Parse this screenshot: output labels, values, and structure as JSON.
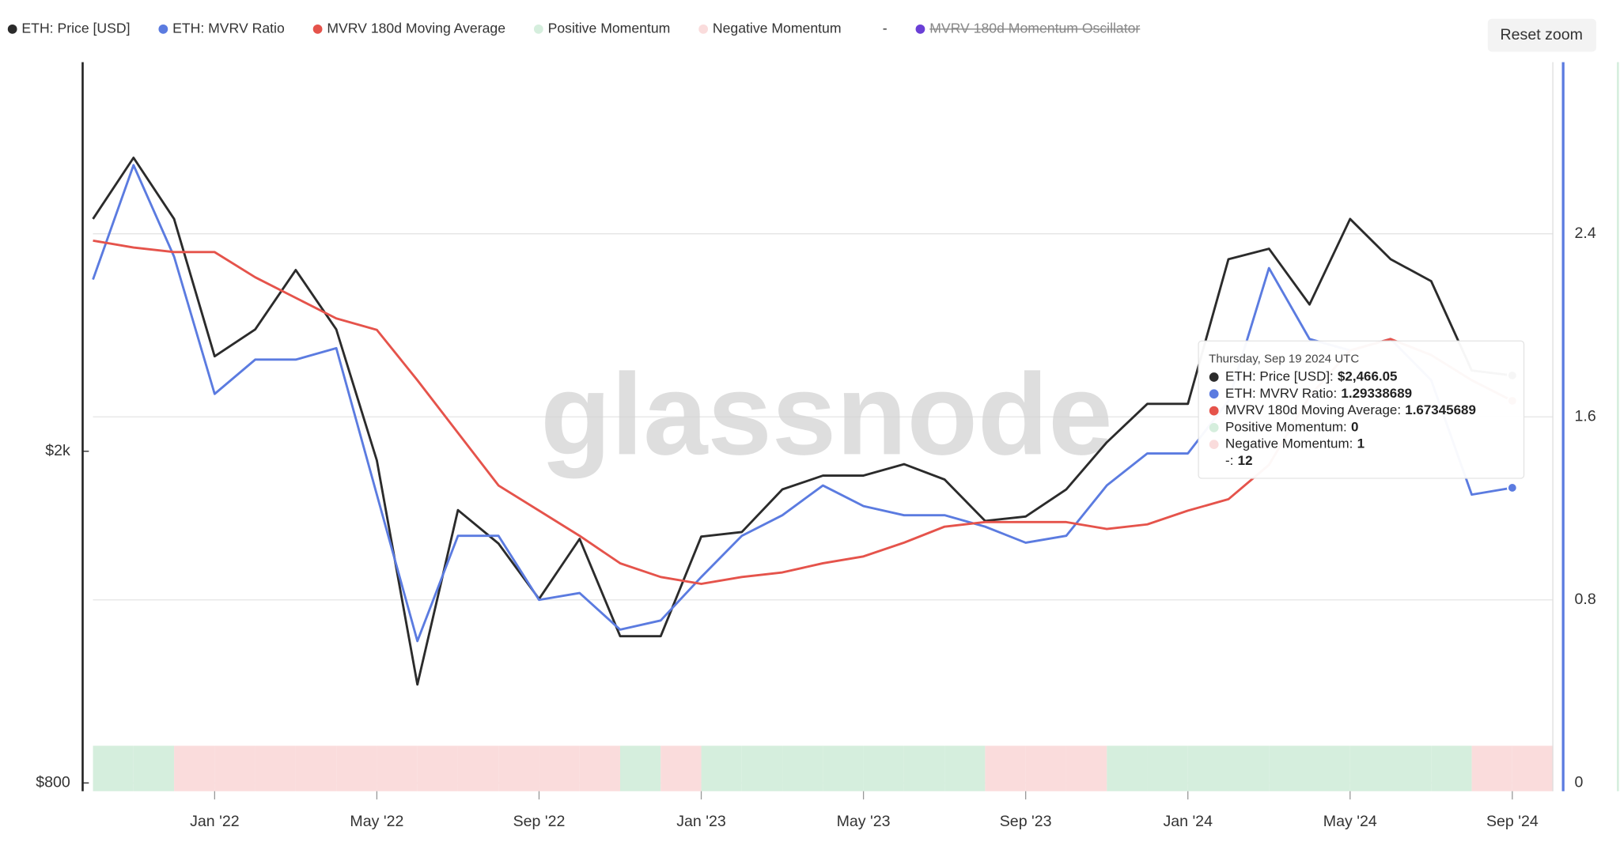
{
  "chart_data": {
    "type": "line",
    "x": [
      "2021-10",
      "2021-11",
      "2021-12",
      "2022-01",
      "2022-02",
      "2022-03",
      "2022-04",
      "2022-05",
      "2022-06",
      "2022-07",
      "2022-08",
      "2022-09",
      "2022-10",
      "2022-11",
      "2022-12",
      "2023-01",
      "2023-02",
      "2023-03",
      "2023-04",
      "2023-05",
      "2023-06",
      "2023-07",
      "2023-08",
      "2023-09",
      "2023-10",
      "2023-11",
      "2023-12",
      "2024-01",
      "2024-02",
      "2024-03",
      "2024-04",
      "2024-05",
      "2024-06",
      "2024-07",
      "2024-08",
      "2024-09"
    ],
    "xlim": [
      "2021-10",
      "2024-10"
    ],
    "xticks": [
      {
        "value": "2022-01",
        "label": "Jan '22"
      },
      {
        "value": "2022-05",
        "label": "May '22"
      },
      {
        "value": "2022-09",
        "label": "Sep '22"
      },
      {
        "value": "2023-01",
        "label": "Jan '23"
      },
      {
        "value": "2023-05",
        "label": "May '23"
      },
      {
        "value": "2023-09",
        "label": "Sep '23"
      },
      {
        "value": "2024-01",
        "label": "Jan '24"
      },
      {
        "value": "2024-05",
        "label": "May '24"
      },
      {
        "value": "2024-09",
        "label": "Sep '24"
      }
    ],
    "ylim": [
      800,
      5860
    ],
    "log_y": true,
    "yticks": [
      {
        "value": 800,
        "label": "$800"
      },
      {
        "value": 2000,
        "label": "$2k"
      }
    ],
    "y2lim": [
      0,
      3.15
    ],
    "y2ticks": [
      0,
      0.8,
      1.6,
      2.4
    ],
    "grid": true,
    "series": [
      {
        "name": "ETH: Price [USD]",
        "color": "#2b2b2b",
        "axis": "y",
        "style": "line",
        "values": [
          3800,
          4500,
          3800,
          2600,
          2800,
          3300,
          2800,
          1950,
          1050,
          1700,
          1550,
          1330,
          1570,
          1200,
          1200,
          1580,
          1600,
          1800,
          1870,
          1870,
          1930,
          1850,
          1650,
          1670,
          1800,
          2050,
          2280,
          2280,
          3400,
          3500,
          3000,
          3800,
          3400,
          3200,
          2500,
          2466.05
        ]
      },
      {
        "name": "ETH: MVRV Ratio",
        "color": "#5b7be0",
        "axis": "y2",
        "style": "line",
        "values": [
          2.2,
          2.7,
          2.3,
          1.7,
          1.85,
          1.85,
          1.9,
          1.26,
          0.62,
          1.08,
          1.08,
          0.8,
          0.83,
          0.67,
          0.71,
          0.9,
          1.08,
          1.17,
          1.3,
          1.21,
          1.17,
          1.17,
          1.12,
          1.05,
          1.08,
          1.3,
          1.44,
          1.44,
          1.67,
          2.25,
          1.94,
          1.89,
          1.94,
          1.76,
          1.26,
          1.29
        ]
      },
      {
        "name": "MVRV 180d Moving Average",
        "color": "#e5534b",
        "axis": "y2",
        "style": "line",
        "values": [
          2.37,
          2.34,
          2.32,
          2.32,
          2.21,
          2.12,
          2.03,
          1.98,
          1.76,
          1.53,
          1.3,
          1.19,
          1.08,
          0.96,
          0.9,
          0.87,
          0.9,
          0.92,
          0.96,
          0.99,
          1.05,
          1.12,
          1.14,
          1.14,
          1.14,
          1.11,
          1.13,
          1.19,
          1.24,
          1.39,
          1.69,
          1.89,
          1.94,
          1.87,
          1.76,
          1.67
        ]
      },
      {
        "name": "Positive Momentum",
        "color": "#d5eedd",
        "axis": "y2",
        "style": "band",
        "values": [
          1,
          1,
          0,
          0,
          0,
          0,
          0,
          0,
          0,
          0,
          0,
          0,
          0,
          1,
          0,
          1,
          1,
          1,
          1,
          1,
          1,
          1,
          0,
          0,
          0,
          1,
          1,
          1,
          1,
          1,
          1,
          1,
          1,
          1,
          0,
          0
        ]
      },
      {
        "name": "Negative Momentum",
        "color": "#fadcdc",
        "axis": "y2",
        "style": "band",
        "values": [
          0,
          0,
          1,
          1,
          1,
          1,
          1,
          1,
          1,
          1,
          1,
          1,
          1,
          0,
          1,
          0,
          0,
          0,
          0,
          0,
          0,
          0,
          1,
          1,
          1,
          0,
          0,
          0,
          0,
          0,
          0,
          0,
          0,
          0,
          1,
          1
        ]
      }
    ]
  },
  "legend_extra": [
    {
      "name": "-"
    },
    {
      "name": "MVRV 180d Momentum Oscillator",
      "color": "#6a3fd6",
      "hidden": true
    }
  ],
  "watermark": "glassnode",
  "reset_button": "Reset zoom",
  "tooltip": {
    "date": "Thursday, Sep 19 2024 UTC",
    "rows": [
      {
        "label": "ETH: Price [USD]:",
        "value": "$2,466.05",
        "color": "#2b2b2b"
      },
      {
        "label": "ETH: MVRV Ratio:",
        "value": "1.29338689",
        "color": "#5b7be0"
      },
      {
        "label": "MVRV 180d Moving Average:",
        "value": "1.67345689",
        "color": "#e5534b"
      },
      {
        "label": "Positive Momentum:",
        "value": "0",
        "color": "#d5eedd"
      },
      {
        "label": "Negative Momentum:",
        "value": "1",
        "color": "#fadcdc"
      },
      {
        "label": "-:",
        "value": "12"
      }
    ]
  }
}
